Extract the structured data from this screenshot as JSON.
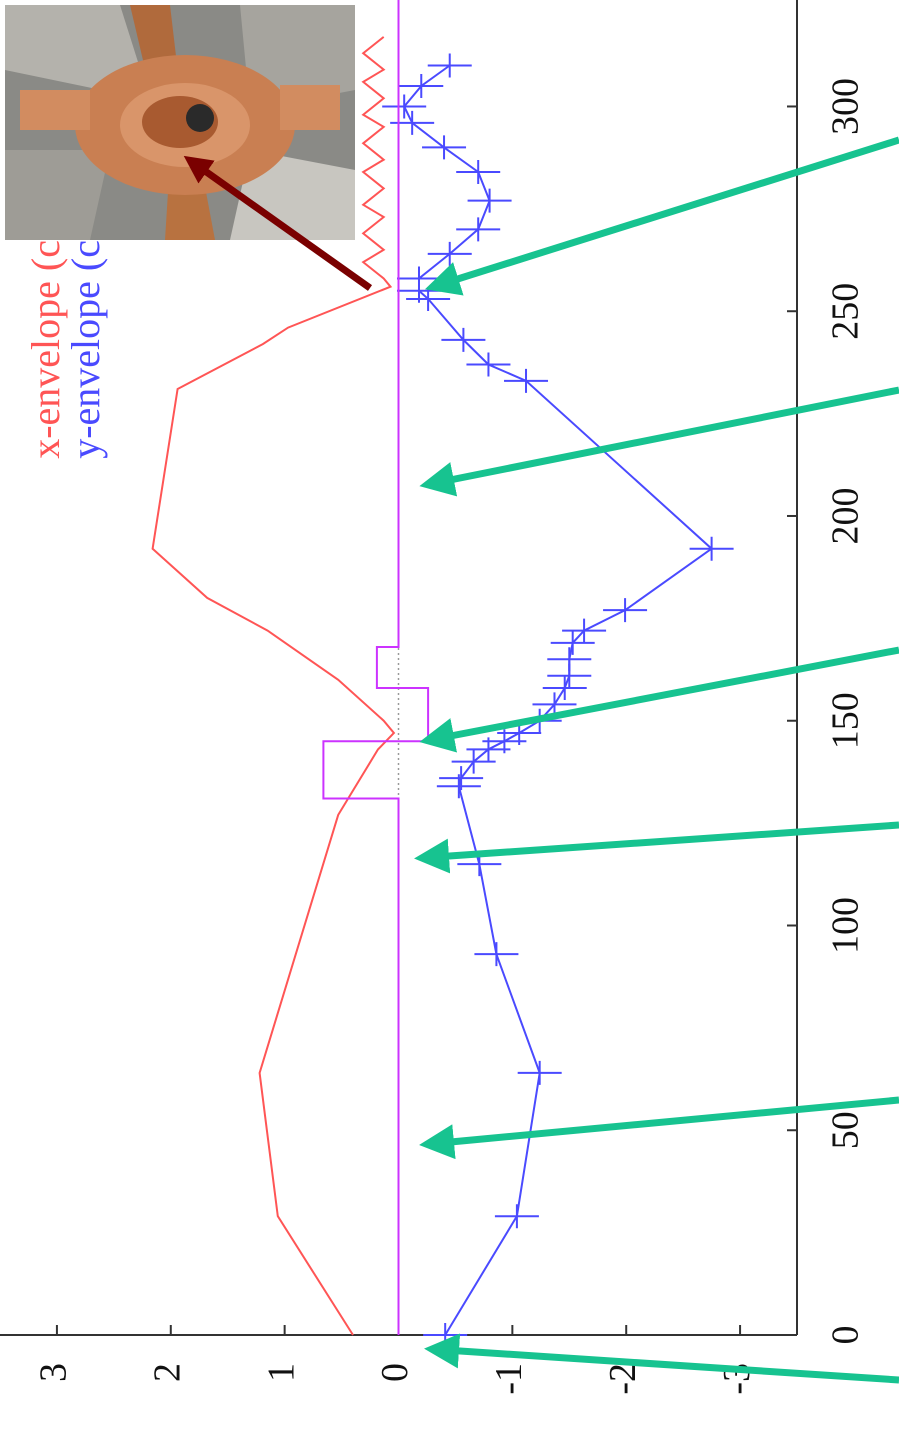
{
  "chart_data": {
    "type": "line",
    "xlim": [
      0,
      326
    ],
    "ylim": [
      -3.5,
      3.5
    ],
    "xticks": [
      0,
      50,
      100,
      150,
      200,
      250,
      300
    ],
    "yticks": [
      -3,
      -2,
      -1,
      0,
      1,
      2,
      3
    ],
    "zero_line": true,
    "series": [
      {
        "name": "x-envelope (c",
        "color": "#ff5555",
        "marker": "none",
        "x": [
          0,
          29,
          64,
          127,
          143,
          147,
          150,
          160,
          172,
          180,
          192,
          231,
          242,
          246,
          256,
          258,
          262,
          265,
          269,
          273,
          276,
          280,
          284,
          287,
          291,
          295,
          298,
          302,
          306,
          309,
          313,
          317
        ],
        "values": [
          0.4,
          1.06,
          1.22,
          0.53,
          0.18,
          0.04,
          0.13,
          0.53,
          1.15,
          1.68,
          2.16,
          1.94,
          1.19,
          0.97,
          0.07,
          0.13,
          0.31,
          0.13,
          0.31,
          0.13,
          0.31,
          0.13,
          0.31,
          0.13,
          0.31,
          0.13,
          0.31,
          0.13,
          0.31,
          0.13,
          0.31,
          0.13
        ]
      },
      {
        "name": "y-envelope (c",
        "color": "#4a4aff",
        "marker": "+",
        "x": [
          0,
          29,
          64,
          93,
          115,
          134,
          136,
          140,
          143,
          145,
          147,
          150,
          154,
          158,
          161,
          165,
          169,
          172,
          177,
          192,
          233,
          237,
          243,
          253,
          255,
          258,
          264,
          270,
          277,
          284,
          290,
          296,
          300,
          305,
          310
        ],
        "values": [
          -0.41,
          -1.04,
          -1.24,
          -0.86,
          -0.71,
          -0.53,
          -0.55,
          -0.66,
          -0.79,
          -0.93,
          -1.06,
          -1.24,
          -1.37,
          -1.46,
          -1.5,
          -1.5,
          -1.53,
          -1.63,
          -1.99,
          -2.75,
          -1.12,
          -0.79,
          -0.57,
          -0.26,
          -0.18,
          -0.18,
          -0.45,
          -0.7,
          -0.8,
          -0.7,
          -0.4,
          -0.12,
          -0.05,
          -0.2,
          -0.45
        ]
      },
      {
        "color": "#cc33ff",
        "marker": "none",
        "x": [
          0,
          131,
          131,
          145,
          145,
          158,
          158,
          168,
          168,
          326
        ],
        "values": [
          0,
          0,
          0.66,
          0.66,
          -0.26,
          -0.26,
          0.19,
          0.19,
          0,
          0
        ]
      }
    ]
  }
}
